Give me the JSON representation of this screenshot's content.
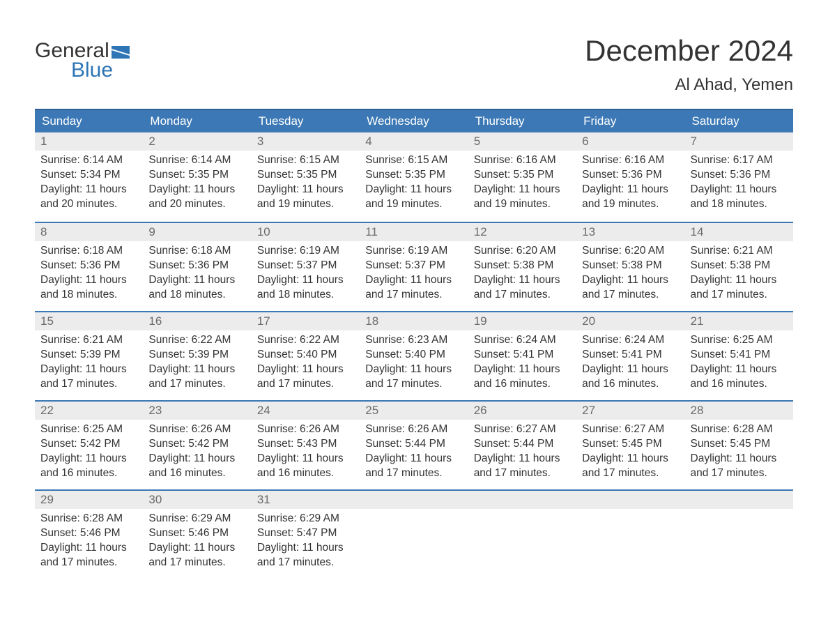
{
  "logo": {
    "top": "General",
    "bottom": "Blue",
    "flag_color": "#2e75b6"
  },
  "title": "December 2024",
  "location": "Al Ahad, Yemen",
  "colors": {
    "header_bg": "#3b78b5",
    "header_border": "#2e5e94",
    "daynum_bg": "#ececec",
    "daynum_text": "#6b6b6b",
    "body_text": "#333333",
    "logo_blue": "#2e75b6"
  },
  "day_names": [
    "Sunday",
    "Monday",
    "Tuesday",
    "Wednesday",
    "Thursday",
    "Friday",
    "Saturday"
  ],
  "weeks": [
    [
      {
        "n": "1",
        "sunrise": "6:14 AM",
        "sunset": "5:34 PM",
        "daylight": "11 hours and 20 minutes."
      },
      {
        "n": "2",
        "sunrise": "6:14 AM",
        "sunset": "5:35 PM",
        "daylight": "11 hours and 20 minutes."
      },
      {
        "n": "3",
        "sunrise": "6:15 AM",
        "sunset": "5:35 PM",
        "daylight": "11 hours and 19 minutes."
      },
      {
        "n": "4",
        "sunrise": "6:15 AM",
        "sunset": "5:35 PM",
        "daylight": "11 hours and 19 minutes."
      },
      {
        "n": "5",
        "sunrise": "6:16 AM",
        "sunset": "5:35 PM",
        "daylight": "11 hours and 19 minutes."
      },
      {
        "n": "6",
        "sunrise": "6:16 AM",
        "sunset": "5:36 PM",
        "daylight": "11 hours and 19 minutes."
      },
      {
        "n": "7",
        "sunrise": "6:17 AM",
        "sunset": "5:36 PM",
        "daylight": "11 hours and 18 minutes."
      }
    ],
    [
      {
        "n": "8",
        "sunrise": "6:18 AM",
        "sunset": "5:36 PM",
        "daylight": "11 hours and 18 minutes."
      },
      {
        "n": "9",
        "sunrise": "6:18 AM",
        "sunset": "5:36 PM",
        "daylight": "11 hours and 18 minutes."
      },
      {
        "n": "10",
        "sunrise": "6:19 AM",
        "sunset": "5:37 PM",
        "daylight": "11 hours and 18 minutes."
      },
      {
        "n": "11",
        "sunrise": "6:19 AM",
        "sunset": "5:37 PM",
        "daylight": "11 hours and 17 minutes."
      },
      {
        "n": "12",
        "sunrise": "6:20 AM",
        "sunset": "5:38 PM",
        "daylight": "11 hours and 17 minutes."
      },
      {
        "n": "13",
        "sunrise": "6:20 AM",
        "sunset": "5:38 PM",
        "daylight": "11 hours and 17 minutes."
      },
      {
        "n": "14",
        "sunrise": "6:21 AM",
        "sunset": "5:38 PM",
        "daylight": "11 hours and 17 minutes."
      }
    ],
    [
      {
        "n": "15",
        "sunrise": "6:21 AM",
        "sunset": "5:39 PM",
        "daylight": "11 hours and 17 minutes."
      },
      {
        "n": "16",
        "sunrise": "6:22 AM",
        "sunset": "5:39 PM",
        "daylight": "11 hours and 17 minutes."
      },
      {
        "n": "17",
        "sunrise": "6:22 AM",
        "sunset": "5:40 PM",
        "daylight": "11 hours and 17 minutes."
      },
      {
        "n": "18",
        "sunrise": "6:23 AM",
        "sunset": "5:40 PM",
        "daylight": "11 hours and 17 minutes."
      },
      {
        "n": "19",
        "sunrise": "6:24 AM",
        "sunset": "5:41 PM",
        "daylight": "11 hours and 16 minutes."
      },
      {
        "n": "20",
        "sunrise": "6:24 AM",
        "sunset": "5:41 PM",
        "daylight": "11 hours and 16 minutes."
      },
      {
        "n": "21",
        "sunrise": "6:25 AM",
        "sunset": "5:41 PM",
        "daylight": "11 hours and 16 minutes."
      }
    ],
    [
      {
        "n": "22",
        "sunrise": "6:25 AM",
        "sunset": "5:42 PM",
        "daylight": "11 hours and 16 minutes."
      },
      {
        "n": "23",
        "sunrise": "6:26 AM",
        "sunset": "5:42 PM",
        "daylight": "11 hours and 16 minutes."
      },
      {
        "n": "24",
        "sunrise": "6:26 AM",
        "sunset": "5:43 PM",
        "daylight": "11 hours and 16 minutes."
      },
      {
        "n": "25",
        "sunrise": "6:26 AM",
        "sunset": "5:44 PM",
        "daylight": "11 hours and 17 minutes."
      },
      {
        "n": "26",
        "sunrise": "6:27 AM",
        "sunset": "5:44 PM",
        "daylight": "11 hours and 17 minutes."
      },
      {
        "n": "27",
        "sunrise": "6:27 AM",
        "sunset": "5:45 PM",
        "daylight": "11 hours and 17 minutes."
      },
      {
        "n": "28",
        "sunrise": "6:28 AM",
        "sunset": "5:45 PM",
        "daylight": "11 hours and 17 minutes."
      }
    ],
    [
      {
        "n": "29",
        "sunrise": "6:28 AM",
        "sunset": "5:46 PM",
        "daylight": "11 hours and 17 minutes."
      },
      {
        "n": "30",
        "sunrise": "6:29 AM",
        "sunset": "5:46 PM",
        "daylight": "11 hours and 17 minutes."
      },
      {
        "n": "31",
        "sunrise": "6:29 AM",
        "sunset": "5:47 PM",
        "daylight": "11 hours and 17 minutes."
      },
      null,
      null,
      null,
      null
    ]
  ],
  "labels": {
    "sunrise": "Sunrise:",
    "sunset": "Sunset:",
    "daylight": "Daylight:"
  }
}
